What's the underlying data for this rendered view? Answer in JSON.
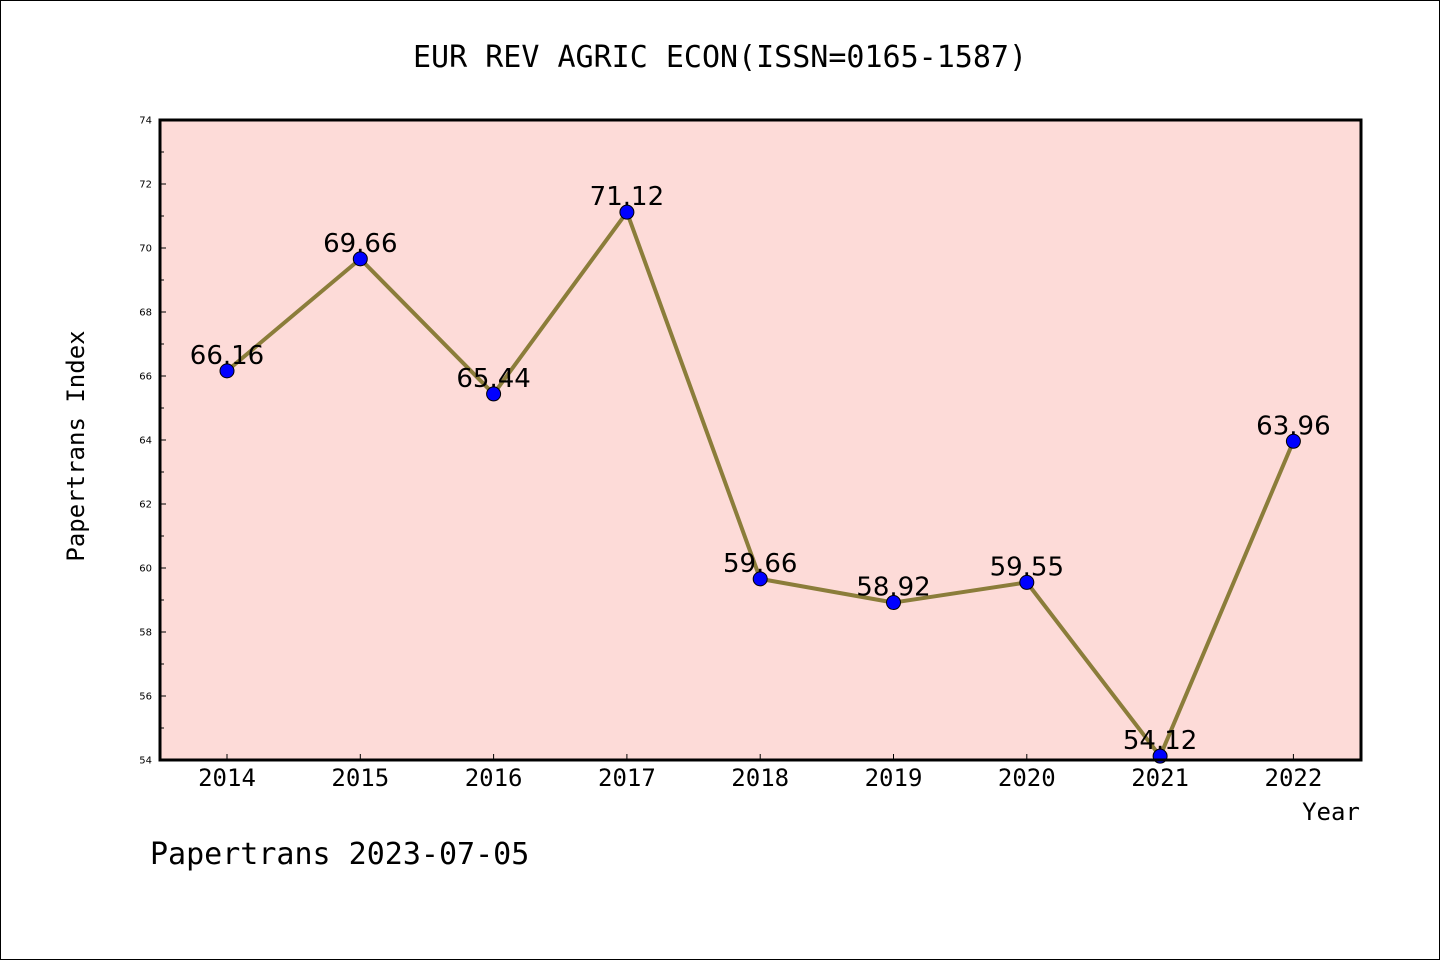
{
  "chart_data": {
    "type": "line",
    "title": "EUR REV AGRIC ECON(ISSN=0165-1587)",
    "xlabel": "Year",
    "ylabel": "Papertrans Index",
    "categories": [
      "2014",
      "2015",
      "2016",
      "2017",
      "2018",
      "2019",
      "2020",
      "2021",
      "2022"
    ],
    "series": [
      {
        "values": [
          66.16,
          69.66,
          65.44,
          71.12,
          59.66,
          58.92,
          59.55,
          54.12,
          63.96
        ],
        "labels": [
          "66.16",
          "69.66",
          "65.44",
          "71.12",
          "59.66",
          "58.92",
          "59.55",
          "54.12",
          "63.96"
        ]
      }
    ],
    "ylim": [
      54,
      74
    ],
    "yticks": [
      "54",
      "56",
      "58",
      "60",
      "62",
      "64",
      "66",
      "68",
      "70",
      "72",
      "74"
    ],
    "grid": false,
    "colors": {
      "plot_background": "#fddbd8",
      "line": "#8b7d3a",
      "marker": "#0000ff"
    }
  },
  "footer": "Papertrans 2023-07-05"
}
